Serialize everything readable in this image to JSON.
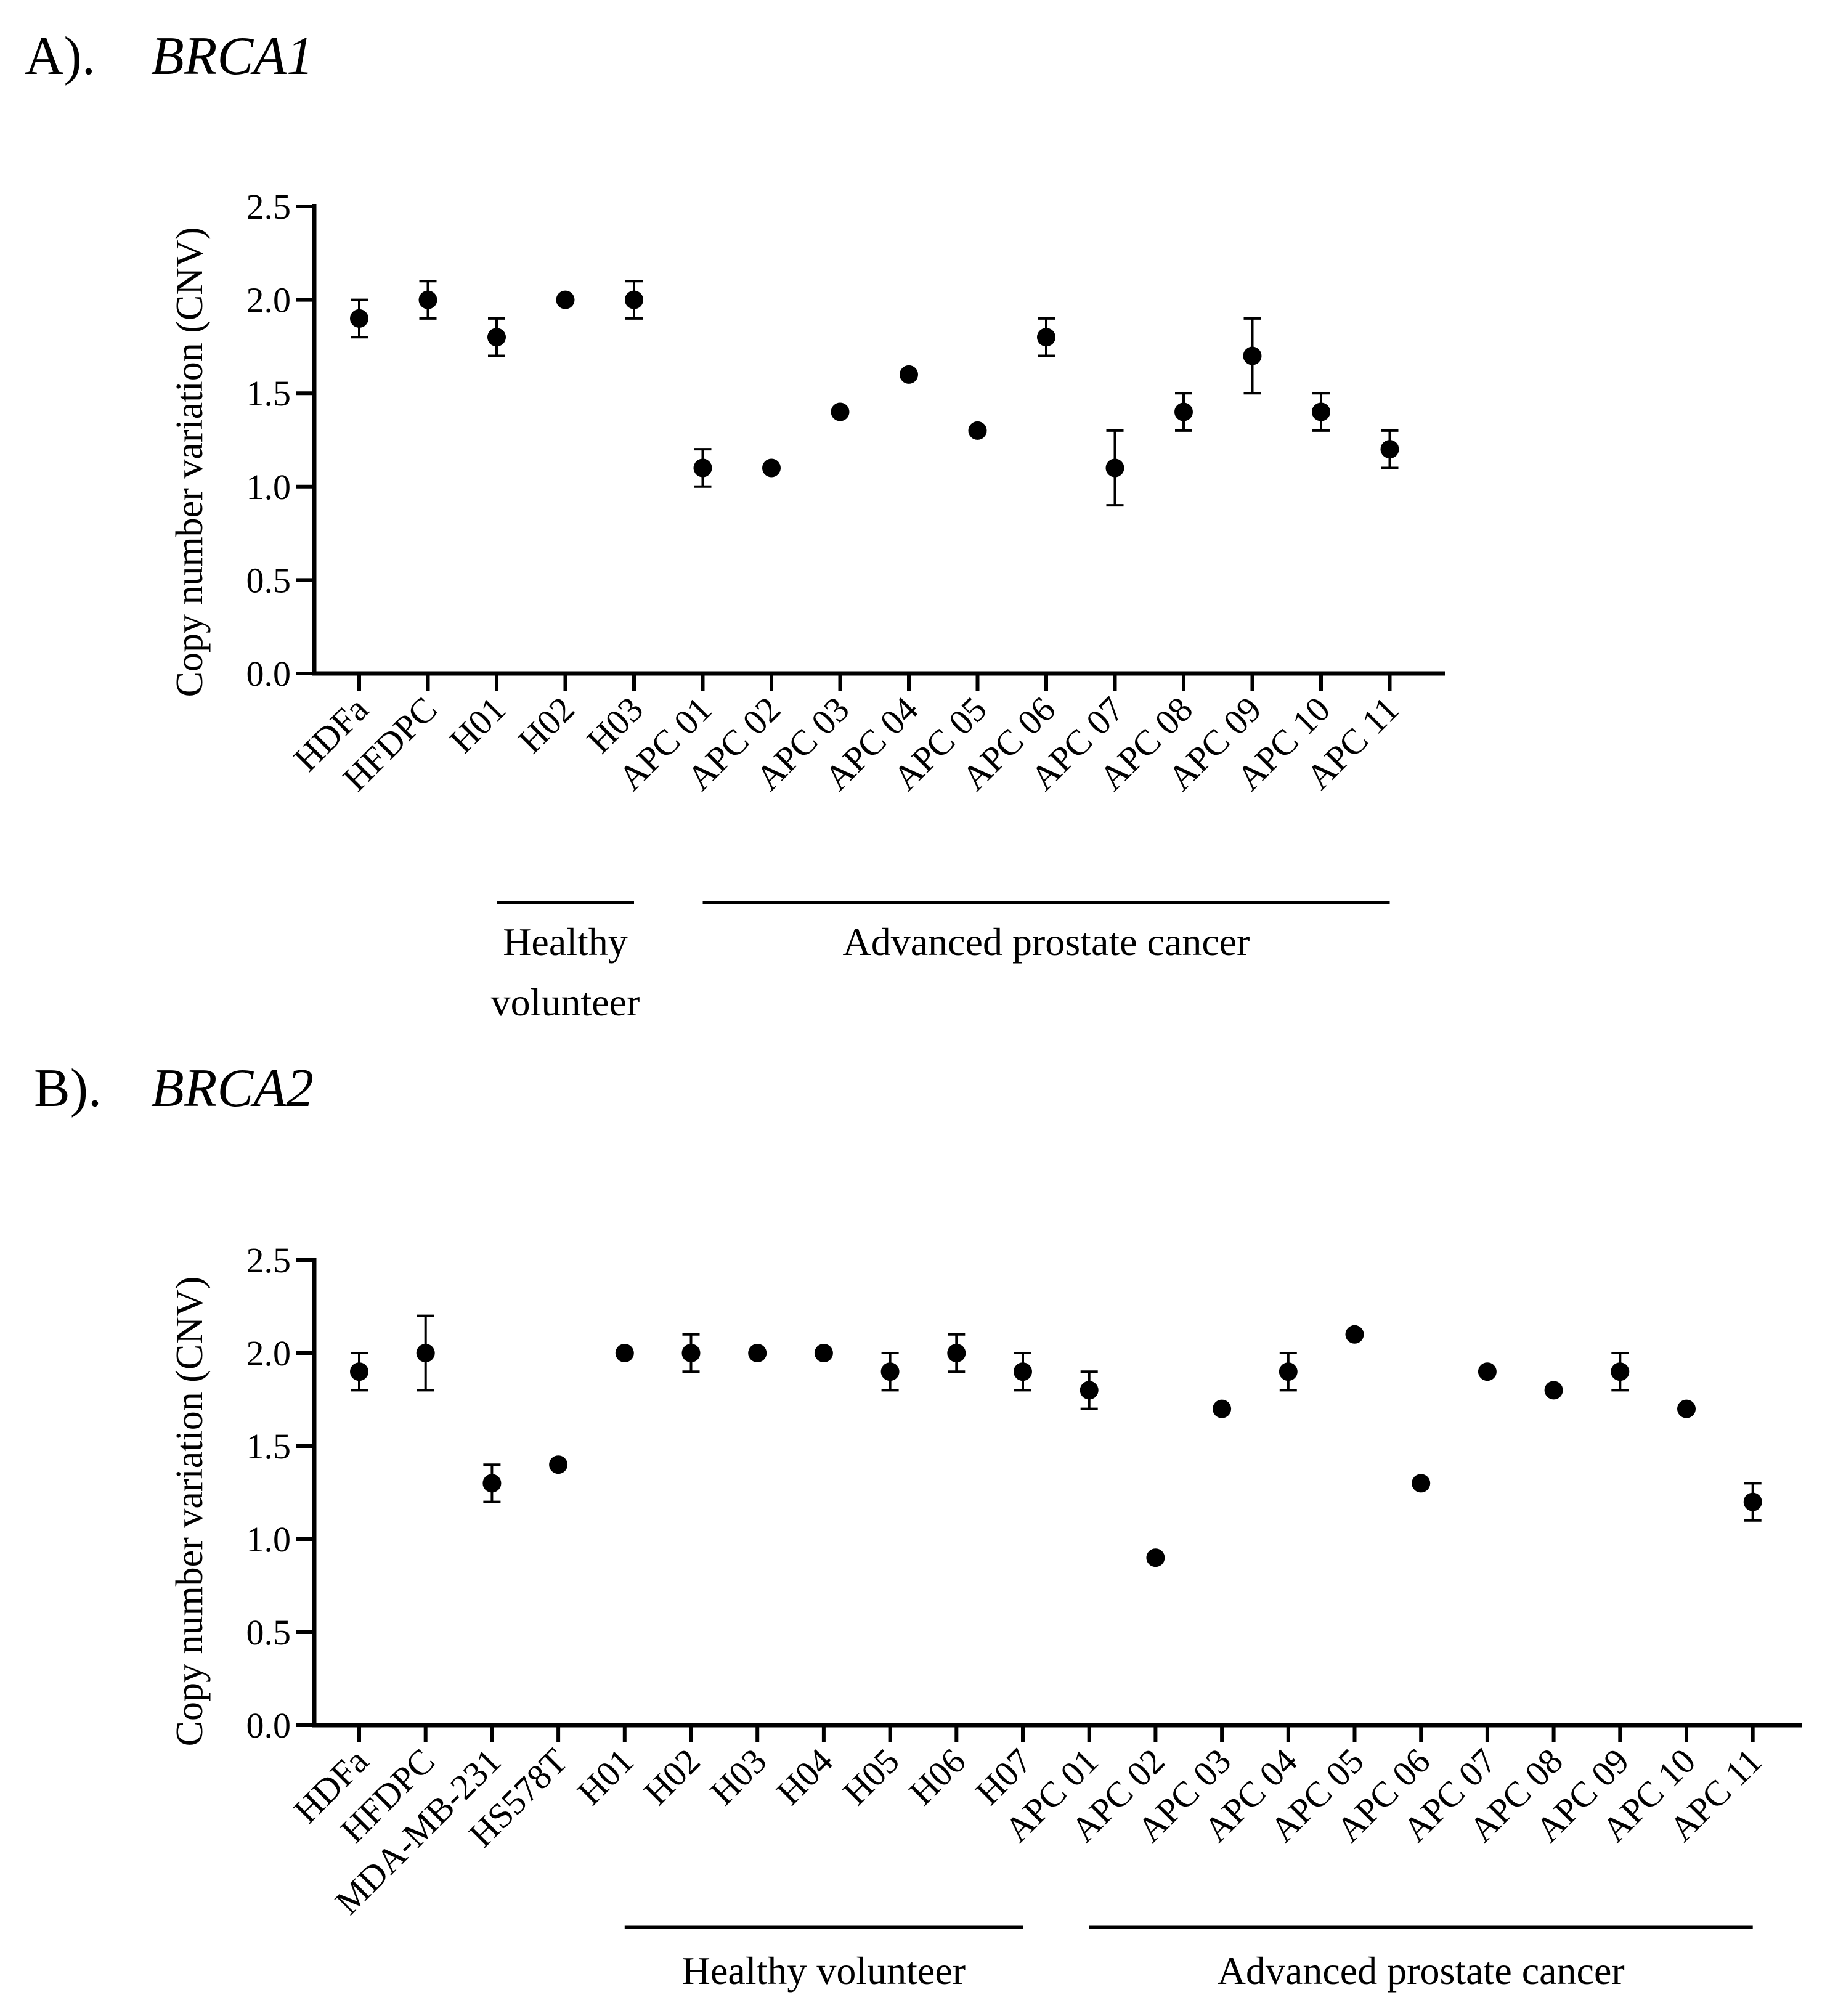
{
  "chart_data": [
    {
      "type": "scatter",
      "panel_label": "A).",
      "title": "BRCA1",
      "xlabel": "",
      "ylabel": "Copy number variation (CNV)",
      "ylim": [
        0,
        2.5
      ],
      "yticks": [
        0.0,
        0.5,
        1.0,
        1.5,
        2.0,
        2.5
      ],
      "ytick_labels": [
        "0.0",
        "0.5",
        "1.0",
        "1.5",
        "2.0",
        "2.5"
      ],
      "categories": [
        "HDFa",
        "HFDPC",
        "H01",
        "H02",
        "H03",
        "APC 01",
        "APC 02",
        "APC 03",
        "APC 04",
        "APC 05",
        "APC 06",
        "APC 07",
        "APC 08",
        "APC 09",
        "APC 10",
        "APC 11"
      ],
      "values": [
        1.9,
        2.0,
        1.8,
        2.0,
        2.0,
        1.1,
        1.1,
        1.4,
        1.6,
        1.3,
        1.8,
        1.1,
        1.4,
        1.7,
        1.4,
        1.2
      ],
      "errors": [
        0.1,
        0.1,
        0.1,
        0,
        0.1,
        0.1,
        0,
        0,
        0,
        0,
        0.1,
        0.2,
        0.1,
        0.2,
        0.1,
        0.1
      ],
      "groups": [
        {
          "label_lines": [
            "Healthy",
            "volunteer"
          ],
          "start_index": 2,
          "end_index": 4
        },
        {
          "label_lines": [
            "Advanced prostate cancer"
          ],
          "start_index": 5,
          "end_index": 15
        }
      ]
    },
    {
      "type": "scatter",
      "panel_label": "B).",
      "title": "BRCA2",
      "xlabel": "",
      "ylabel": "Copy number variation (CNV)",
      "ylim": [
        0,
        2.5
      ],
      "yticks": [
        0.0,
        0.5,
        1.0,
        1.5,
        2.0,
        2.5
      ],
      "ytick_labels": [
        "0.0",
        "0.5",
        "1.0",
        "1.5",
        "2.0",
        "2.5"
      ],
      "categories": [
        "HDFa",
        "HFDPC",
        "MDA-MB-231",
        "HS578T",
        "H01",
        "H02",
        "H03",
        "H04",
        "H05",
        "H06",
        "H07",
        "APC 01",
        "APC 02",
        "APC 03",
        "APC 04",
        "APC 05",
        "APC 06",
        "APC 07",
        "APC 08",
        "APC 09",
        "APC 10",
        "APC 11"
      ],
      "values": [
        1.9,
        2.0,
        1.3,
        1.4,
        2.0,
        2.0,
        2.0,
        2.0,
        1.9,
        2.0,
        1.9,
        1.8,
        0.9,
        1.7,
        1.9,
        2.1,
        1.3,
        1.9,
        1.8,
        1.9,
        1.7,
        1.2
      ],
      "errors": [
        0.1,
        0.2,
        0.1,
        0,
        0,
        0.1,
        0,
        0,
        0.1,
        0.1,
        0.1,
        0.1,
        0,
        0,
        0.1,
        0,
        0,
        0,
        0,
        0.1,
        0,
        0.1
      ],
      "groups": [
        {
          "label_lines": [
            "Healthy volunteer"
          ],
          "start_index": 4,
          "end_index": 10
        },
        {
          "label_lines": [
            "Advanced prostate cancer"
          ],
          "start_index": 11,
          "end_index": 21
        }
      ]
    }
  ]
}
